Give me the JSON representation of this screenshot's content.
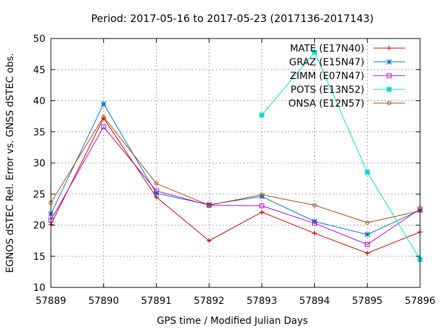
{
  "chart_data": {
    "type": "line",
    "title": "Period: 2017-05-16 to 2017-05-23 (2017136-2017143)",
    "xlabel": "GPS time / Modified Julian Days",
    "ylabel": "EGNOS dSTEC Rel. Error vs. GNSS dSTEC obs.",
    "xlim": [
      57889,
      57896
    ],
    "ylim": [
      10,
      50
    ],
    "xticks": [
      57889,
      57890,
      57891,
      57892,
      57893,
      57894,
      57895,
      57896
    ],
    "yticks": [
      10,
      15,
      20,
      25,
      30,
      35,
      40,
      45,
      50
    ],
    "grid": true,
    "legend_position": "top-right",
    "series": [
      {
        "name": "MATE (E17N40)",
        "color": "#cc0000",
        "marker": "plus",
        "x": [
          57889,
          57890,
          57891,
          57892,
          57893,
          57894,
          57895,
          57896
        ],
        "values": [
          20.1,
          37.2,
          24.5,
          17.5,
          22.1,
          18.7,
          15.5,
          18.9
        ]
      },
      {
        "name": "GRAZ (E15N47)",
        "color": "#0072c6",
        "marker": "star",
        "x": [
          57889,
          57890,
          57891,
          57892,
          57893,
          57894,
          57895,
          57896
        ],
        "values": [
          21.8,
          39.5,
          25.1,
          23.3,
          24.6,
          20.6,
          18.5,
          22.4
        ]
      },
      {
        "name": "ZIMM (E07N47)",
        "color": "#b000d0",
        "marker": "square-open",
        "x": [
          57889,
          57890,
          57891,
          57892,
          57893,
          57894,
          57895,
          57896
        ],
        "values": [
          20.8,
          35.8,
          25.5,
          23.2,
          23.1,
          20.3,
          16.9,
          22.6
        ]
      },
      {
        "name": "POTS (E13N52)",
        "color": "#00dada",
        "marker": "square-filled",
        "x": [
          57893,
          57894,
          57895,
          57896
        ],
        "values": [
          37.7,
          47.8,
          28.5,
          14.5
        ]
      },
      {
        "name": "ONSA (E12N57)",
        "color": "#b04000",
        "marker": "circle-open",
        "x": [
          57889,
          57890,
          57891,
          57892,
          57893,
          57894,
          57895,
          57896
        ],
        "values": [
          23.6,
          37.4,
          26.7,
          23.2,
          24.9,
          23.2,
          20.4,
          22.3
        ]
      }
    ]
  }
}
